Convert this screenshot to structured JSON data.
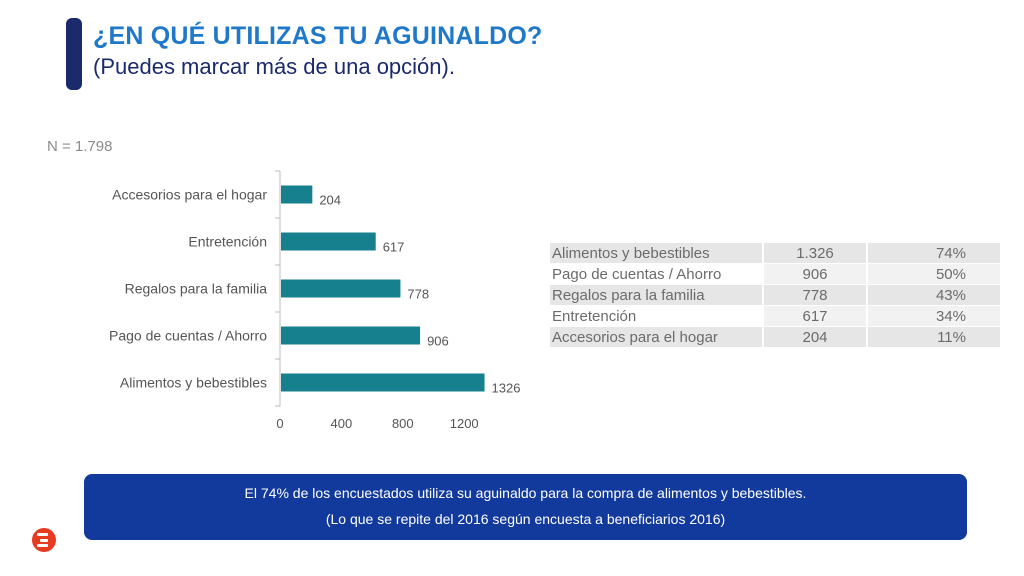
{
  "header": {
    "title": "¿EN QUÉ UTILIZAS TU AGUINALDO?",
    "subtitle": "(Puedes marcar más de una opción)."
  },
  "sample_size": "N = 1.798",
  "chart_data": {
    "type": "bar",
    "orientation": "horizontal",
    "categories": [
      "Accesorios para el hogar",
      "Entretención",
      "Regalos para la familia",
      "Pago de cuentas / Ahorro",
      "Alimentos y bebestibles"
    ],
    "values": [
      204,
      617,
      778,
      906,
      1326
    ],
    "data_labels": [
      "204",
      "617",
      "778",
      "906",
      "1326"
    ],
    "xlim": [
      0,
      1300
    ],
    "xticks": [
      0,
      400,
      800,
      1200
    ],
    "grid": false,
    "legend": "none",
    "bar_color": "#17808f"
  },
  "table": {
    "rows": [
      [
        "Alimentos y bebestibles",
        "1.326",
        "74%"
      ],
      [
        "Pago de cuentas / Ahorro",
        "906",
        "50%"
      ],
      [
        "Regalos para la familia",
        "778",
        "43%"
      ],
      [
        "Entretención",
        "617",
        "34%"
      ],
      [
        "Accesorios para el hogar",
        "204",
        "11%"
      ]
    ]
  },
  "callout": {
    "line1": "El 74% de los encuestados utiliza su aguinaldo para la compra de alimentos y bebestibles.",
    "line2": "(Lo que se repite del 2016 según encuesta a beneficiarios 2016)"
  },
  "colors": {
    "title": "#1f78c8",
    "subtitle": "#1b2a6b",
    "callout_bg": "#123a9c",
    "logo": "#e63b1e"
  },
  "icons": {
    "logo": "brand-logo-icon"
  }
}
